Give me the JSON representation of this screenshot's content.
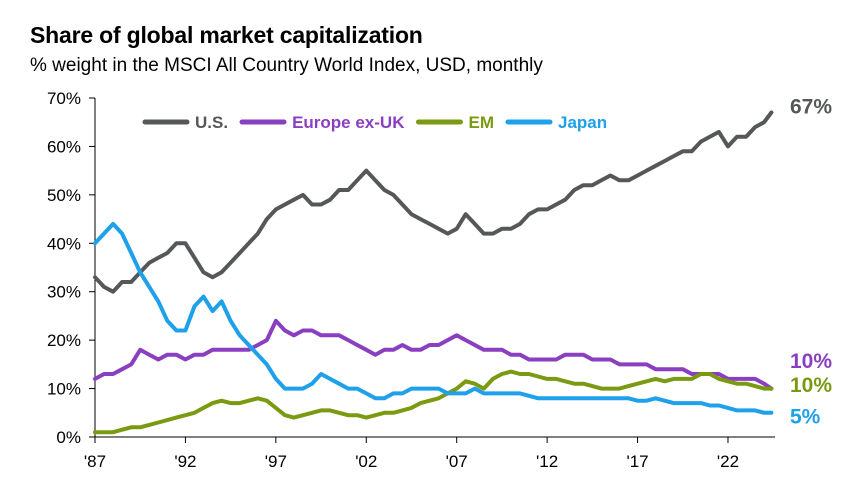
{
  "title": "Share of global market capitalization",
  "subtitle": "% weight in the MSCI All Country World Index, USD, monthly",
  "colors": {
    "us": "#555759",
    "europe": "#8a3fc0",
    "em": "#7a9a12",
    "japan": "#1ea0ea",
    "axis": "#000000"
  },
  "chart_data": {
    "type": "line",
    "title": "Share of global market capitalization",
    "subtitle": "% weight in the MSCI All Country World Index, USD, monthly",
    "xlabel": "",
    "ylabel": "",
    "xlim": [
      1987,
      2024.6
    ],
    "ylim": [
      0,
      70
    ],
    "y_ticks": [
      0,
      10,
      20,
      30,
      40,
      50,
      60,
      70
    ],
    "y_tick_labels": [
      "0%",
      "10%",
      "20%",
      "30%",
      "40%",
      "50%",
      "60%",
      "70%"
    ],
    "x_ticks": [
      1987,
      1992,
      1997,
      2002,
      2007,
      2012,
      2017,
      2022
    ],
    "x_tick_labels": [
      "'87",
      "'92",
      "'97",
      "'02",
      "'07",
      "'12",
      "'17",
      "'22"
    ],
    "grid": false,
    "legend": "top",
    "series": [
      {
        "key": "us",
        "name": "U.S.",
        "end_label": "67%",
        "x": [
          1987.0,
          1987.5,
          1988.0,
          1988.5,
          1989.0,
          1989.5,
          1990.0,
          1990.5,
          1991.0,
          1991.5,
          1992.0,
          1992.5,
          1993.0,
          1993.5,
          1994.0,
          1994.5,
          1995.0,
          1995.5,
          1996.0,
          1996.5,
          1997.0,
          1997.5,
          1998.0,
          1998.5,
          1999.0,
          1999.5,
          2000.0,
          2000.5,
          2001.0,
          2001.5,
          2002.0,
          2002.5,
          2003.0,
          2003.5,
          2004.0,
          2004.5,
          2005.0,
          2005.5,
          2006.0,
          2006.5,
          2007.0,
          2007.5,
          2008.0,
          2008.5,
          2009.0,
          2009.5,
          2010.0,
          2010.5,
          2011.0,
          2011.5,
          2012.0,
          2012.5,
          2013.0,
          2013.5,
          2014.0,
          2014.5,
          2015.0,
          2015.5,
          2016.0,
          2016.5,
          2017.0,
          2017.5,
          2018.0,
          2018.5,
          2019.0,
          2019.5,
          2020.0,
          2020.5,
          2021.0,
          2021.5,
          2022.0,
          2022.5,
          2023.0,
          2023.5,
          2024.0,
          2024.4
        ],
        "values": [
          33,
          31,
          30,
          32,
          32,
          34,
          36,
          37,
          38,
          40,
          40,
          37,
          34,
          33,
          34,
          36,
          38,
          40,
          42,
          45,
          47,
          48,
          49,
          50,
          48,
          48,
          49,
          51,
          51,
          53,
          55,
          53,
          51,
          50,
          48,
          46,
          45,
          44,
          43,
          42,
          43,
          46,
          44,
          42,
          42,
          43,
          43,
          44,
          46,
          47,
          47,
          48,
          49,
          51,
          52,
          52,
          53,
          54,
          53,
          53,
          54,
          55,
          56,
          57,
          58,
          59,
          59,
          61,
          62,
          63,
          60,
          62,
          62,
          64,
          65,
          67
        ]
      },
      {
        "key": "europe",
        "name": "Europe ex-UK",
        "end_label": "10%",
        "x": [
          1987.0,
          1987.5,
          1988.0,
          1988.5,
          1989.0,
          1989.5,
          1990.0,
          1990.5,
          1991.0,
          1991.5,
          1992.0,
          1992.5,
          1993.0,
          1993.5,
          1994.0,
          1994.5,
          1995.0,
          1995.5,
          1996.0,
          1996.5,
          1997.0,
          1997.5,
          1998.0,
          1998.5,
          1999.0,
          1999.5,
          2000.0,
          2000.5,
          2001.0,
          2001.5,
          2002.0,
          2002.5,
          2003.0,
          2003.5,
          2004.0,
          2004.5,
          2005.0,
          2005.5,
          2006.0,
          2006.5,
          2007.0,
          2007.5,
          2008.0,
          2008.5,
          2009.0,
          2009.5,
          2010.0,
          2010.5,
          2011.0,
          2011.5,
          2012.0,
          2012.5,
          2013.0,
          2013.5,
          2014.0,
          2014.5,
          2015.0,
          2015.5,
          2016.0,
          2016.5,
          2017.0,
          2017.5,
          2018.0,
          2018.5,
          2019.0,
          2019.5,
          2020.0,
          2020.5,
          2021.0,
          2021.5,
          2022.0,
          2022.5,
          2023.0,
          2023.5,
          2024.0,
          2024.4
        ],
        "values": [
          12,
          13,
          13,
          14,
          15,
          18,
          17,
          16,
          17,
          17,
          16,
          17,
          17,
          18,
          18,
          18,
          18,
          18,
          19,
          20,
          24,
          22,
          21,
          22,
          22,
          21,
          21,
          21,
          20,
          19,
          18,
          17,
          18,
          18,
          19,
          18,
          18,
          19,
          19,
          20,
          21,
          20,
          19,
          18,
          18,
          18,
          17,
          17,
          16,
          16,
          16,
          16,
          17,
          17,
          17,
          16,
          16,
          16,
          15,
          15,
          15,
          15,
          14,
          14,
          14,
          14,
          13,
          13,
          13,
          13,
          12,
          12,
          12,
          12,
          11,
          10
        ]
      },
      {
        "key": "em",
        "name": "EM",
        "end_label": "10%",
        "x": [
          1987.0,
          1987.5,
          1988.0,
          1988.5,
          1989.0,
          1989.5,
          1990.0,
          1990.5,
          1991.0,
          1991.5,
          1992.0,
          1992.5,
          1993.0,
          1993.5,
          1994.0,
          1994.5,
          1995.0,
          1995.5,
          1996.0,
          1996.5,
          1997.0,
          1997.5,
          1998.0,
          1998.5,
          1999.0,
          1999.5,
          2000.0,
          2000.5,
          2001.0,
          2001.5,
          2002.0,
          2002.5,
          2003.0,
          2003.5,
          2004.0,
          2004.5,
          2005.0,
          2005.5,
          2006.0,
          2006.5,
          2007.0,
          2007.5,
          2008.0,
          2008.5,
          2009.0,
          2009.5,
          2010.0,
          2010.5,
          2011.0,
          2011.5,
          2012.0,
          2012.5,
          2013.0,
          2013.5,
          2014.0,
          2014.5,
          2015.0,
          2015.5,
          2016.0,
          2016.5,
          2017.0,
          2017.5,
          2018.0,
          2018.5,
          2019.0,
          2019.5,
          2020.0,
          2020.5,
          2021.0,
          2021.5,
          2022.0,
          2022.5,
          2023.0,
          2023.5,
          2024.0,
          2024.4
        ],
        "values": [
          1,
          1,
          1,
          1.5,
          2,
          2,
          2.5,
          3,
          3.5,
          4,
          4.5,
          5,
          6,
          7,
          7.5,
          7,
          7,
          7.5,
          8,
          7.5,
          6,
          4.5,
          4,
          4.5,
          5,
          5.5,
          5.5,
          5,
          4.5,
          4.5,
          4,
          4.5,
          5,
          5,
          5.5,
          6,
          7,
          7.5,
          8,
          9,
          10,
          11.5,
          11,
          10,
          12,
          13,
          13.5,
          13,
          13,
          12.5,
          12,
          12,
          11.5,
          11,
          11,
          10.5,
          10,
          10,
          10,
          10.5,
          11,
          11.5,
          12,
          11.5,
          12,
          12,
          12,
          13,
          13,
          12,
          11.5,
          11,
          11,
          10.5,
          10,
          10
        ]
      },
      {
        "key": "japan",
        "name": "Japan",
        "end_label": "5%",
        "x": [
          1987.0,
          1987.5,
          1988.0,
          1988.5,
          1989.0,
          1989.5,
          1990.0,
          1990.5,
          1991.0,
          1991.5,
          1992.0,
          1992.5,
          1993.0,
          1993.5,
          1994.0,
          1994.5,
          1995.0,
          1995.5,
          1996.0,
          1996.5,
          1997.0,
          1997.5,
          1998.0,
          1998.5,
          1999.0,
          1999.5,
          2000.0,
          2000.5,
          2001.0,
          2001.5,
          2002.0,
          2002.5,
          2003.0,
          2003.5,
          2004.0,
          2004.5,
          2005.0,
          2005.5,
          2006.0,
          2006.5,
          2007.0,
          2007.5,
          2008.0,
          2008.5,
          2009.0,
          2009.5,
          2010.0,
          2010.5,
          2011.0,
          2011.5,
          2012.0,
          2012.5,
          2013.0,
          2013.5,
          2014.0,
          2014.5,
          2015.0,
          2015.5,
          2016.0,
          2016.5,
          2017.0,
          2017.5,
          2018.0,
          2018.5,
          2019.0,
          2019.5,
          2020.0,
          2020.5,
          2021.0,
          2021.5,
          2022.0,
          2022.5,
          2023.0,
          2023.5,
          2024.0,
          2024.4
        ],
        "values": [
          40,
          42,
          44,
          42,
          38,
          34,
          31,
          28,
          24,
          22,
          22,
          27,
          29,
          26,
          28,
          24,
          21,
          19,
          17,
          15,
          12,
          10,
          10,
          10,
          11,
          13,
          12,
          11,
          10,
          10,
          9,
          8,
          8,
          9,
          9,
          10,
          10,
          10,
          10,
          9,
          9,
          9,
          10,
          9,
          9,
          9,
          9,
          9,
          8.5,
          8,
          8,
          8,
          8,
          8,
          8,
          8,
          8,
          8,
          8,
          8,
          7.5,
          7.5,
          8,
          7.5,
          7,
          7,
          7,
          7,
          6.5,
          6.5,
          6,
          5.5,
          5.5,
          5.5,
          5,
          5
        ]
      }
    ]
  }
}
